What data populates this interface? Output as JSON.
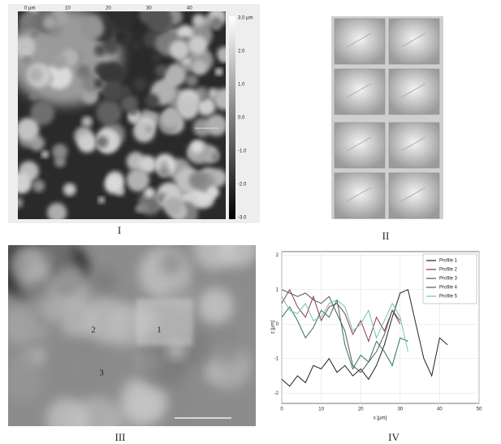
{
  "panels": {
    "I": {
      "caption": "I",
      "top_ticks": [
        "0 µm",
        "10",
        "20",
        "30",
        "40"
      ],
      "colorbar_labels": [
        "3.0 µm",
        "2.0",
        "1.0",
        "0.0",
        "-1.0",
        "-2.0",
        "-3.0"
      ]
    },
    "II": {
      "caption": "II"
    },
    "III": {
      "caption": "III",
      "markers": [
        "1",
        "2",
        "3"
      ]
    },
    "IV": {
      "caption": "IV"
    }
  },
  "chart_data": {
    "type": "line",
    "xlabel": "x [µm]",
    "ylabel": "z [µm]",
    "x": [
      0,
      2,
      4,
      6,
      8,
      10,
      12,
      14,
      16,
      18,
      20,
      22,
      24,
      26,
      28,
      30,
      32,
      34,
      36,
      38,
      40,
      42
    ],
    "xlim": [
      0,
      50
    ],
    "xticks": [
      0,
      10,
      20,
      30,
      40,
      50
    ],
    "ylim": [
      -2.3,
      2.1
    ],
    "yticks": [
      -2,
      -1,
      0,
      1,
      2
    ],
    "grid": true,
    "legend": "upper-right",
    "series": [
      {
        "name": "Profile 1",
        "color": "#222222",
        "values": [
          -1.6,
          -1.8,
          -1.5,
          -1.7,
          -1.2,
          -1.3,
          -1.0,
          -1.4,
          -1.2,
          -1.5,
          -1.3,
          -1.6,
          -1.2,
          -0.6,
          0.2,
          0.9,
          1.0,
          0.0,
          -1.0,
          -1.5,
          -0.4,
          -0.6
        ]
      },
      {
        "name": "Profile 2",
        "color": "#8a3a4a",
        "values": [
          0.6,
          1.0,
          0.5,
          0.2,
          0.8,
          0.1,
          0.5,
          0.6,
          0.3,
          -0.3,
          0.1,
          -0.5,
          0.2,
          -0.2,
          0.4,
          0.0,
          null,
          null,
          null,
          null,
          null,
          null
        ]
      },
      {
        "name": "Profile 3",
        "color": "#555555",
        "values": [
          1.0,
          0.9,
          0.8,
          0.9,
          0.7,
          0.6,
          0.8,
          0.3,
          -0.2,
          -1.2,
          -1.4,
          -1.1,
          -0.8,
          -0.3,
          0.4,
          0.1,
          null,
          null,
          null,
          null,
          null,
          null
        ]
      },
      {
        "name": "Profile 4",
        "color": "#2f6f5f",
        "values": [
          0.2,
          0.5,
          0.1,
          -0.4,
          -0.1,
          0.4,
          0.2,
          0.7,
          -0.6,
          -1.3,
          -0.9,
          -1.1,
          -0.5,
          -0.8,
          -1.2,
          -0.4,
          -0.5,
          null,
          null,
          null,
          null,
          null
        ]
      },
      {
        "name": "Profile 5",
        "color": "#6fc4b0",
        "values": [
          0.8,
          0.4,
          0.3,
          0.6,
          0.1,
          0.2,
          0.6,
          0.7,
          0.5,
          -0.2,
          0.0,
          0.4,
          -0.4,
          0.1,
          0.6,
          0.2,
          -0.8,
          null,
          null,
          null,
          null,
          null
        ]
      }
    ]
  }
}
